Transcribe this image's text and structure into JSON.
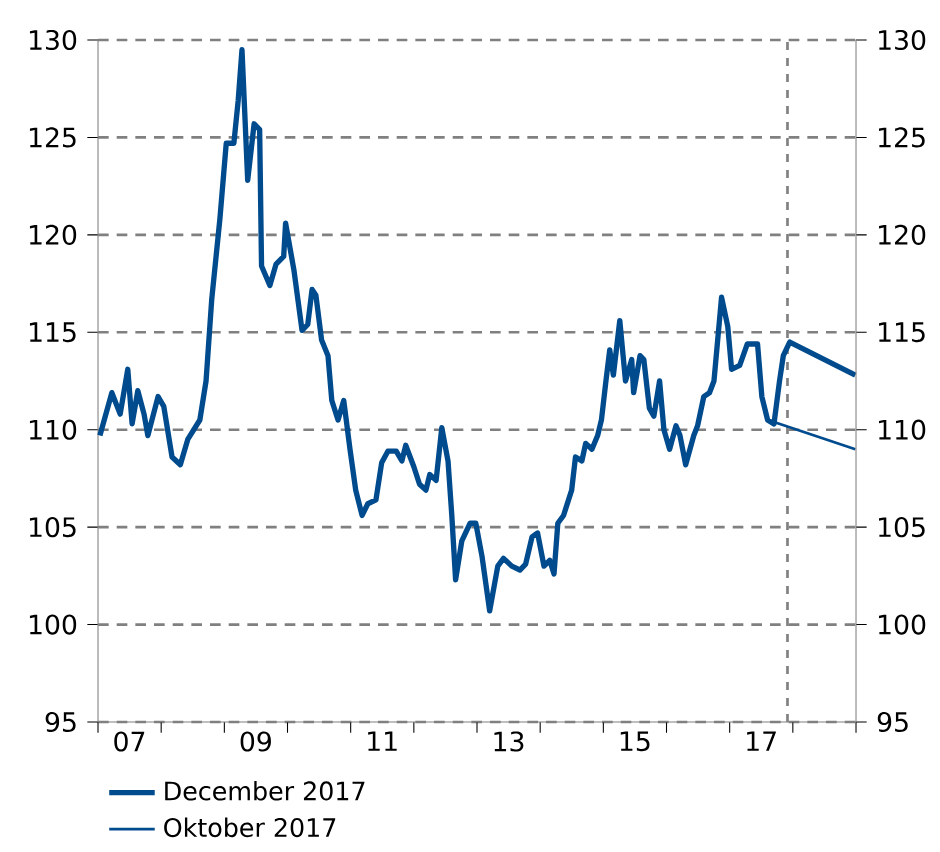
{
  "chart_data": {
    "type": "line",
    "xlim": [
      "2007-01-01",
      "2019-01-01"
    ],
    "xticks": [
      {
        "value": "2007-01-01",
        "label": null
      },
      {
        "value": "2007-07-02",
        "label": "07"
      },
      {
        "value": "2008-01-01",
        "label": null
      },
      {
        "value": "2009-01-01",
        "label": null
      },
      {
        "value": "2009-07-02",
        "label": "09"
      },
      {
        "value": "2010-01-01",
        "label": null
      },
      {
        "value": "2011-01-01",
        "label": null
      },
      {
        "value": "2011-07-02",
        "label": "11"
      },
      {
        "value": "2012-01-01",
        "label": null
      },
      {
        "value": "2013-01-01",
        "label": null
      },
      {
        "value": "2013-07-02",
        "label": "13"
      },
      {
        "value": "2014-01-01",
        "label": null
      },
      {
        "value": "2015-01-01",
        "label": null
      },
      {
        "value": "2015-07-02",
        "label": "15"
      },
      {
        "value": "2016-01-01",
        "label": null
      },
      {
        "value": "2017-01-01",
        "label": null
      },
      {
        "value": "2017-07-02",
        "label": "17"
      },
      {
        "value": "2018-01-01",
        "label": null
      },
      {
        "value": "2019-01-01",
        "label": null
      }
    ],
    "ylim": [
      95,
      130
    ],
    "yticks": [
      95,
      100,
      105,
      110,
      115,
      120,
      125,
      130
    ],
    "y2lim": [
      95,
      130
    ],
    "y2ticks": [
      95,
      100,
      105,
      110,
      115,
      120,
      125,
      130
    ],
    "grid": "y",
    "legend": "bottom",
    "marker": "none",
    "line_style": "solid",
    "ref_lines": [
      {
        "axis": "x",
        "value": "2017-12-01",
        "color": "#808080",
        "line_style": "dashed"
      }
    ],
    "series": [
      {
        "name": "December 2017",
        "color": "#004b8d",
        "x": [
          "2007-01-12",
          "2007-03-22",
          "2007-05-09",
          "2007-06-22",
          "2007-07-17",
          "2007-08-19",
          "2007-09-24",
          "2007-10-16",
          "2007-12-14",
          "2008-01-16",
          "2008-03-04",
          "2008-04-21",
          "2008-06-03",
          "2008-08-12",
          "2008-09-17",
          "2008-10-20",
          "2008-12-06",
          "2009-01-12",
          "2009-02-25",
          "2009-03-22",
          "2009-04-13",
          "2009-05-16",
          "2009-06-22",
          "2009-07-24",
          "2009-08-04",
          "2009-09-21",
          "2009-10-27",
          "2009-12-10",
          "2009-12-21",
          "2010-02-07",
          "2010-03-26",
          "2010-04-28",
          "2010-05-23",
          "2010-06-14",
          "2010-07-17",
          "2010-08-23",
          "2010-09-14",
          "2010-10-20",
          "2010-11-22",
          "2010-12-28",
          "2011-01-30",
          "2011-03-08",
          "2011-04-10",
          "2011-05-27",
          "2011-06-29",
          "2011-08-04",
          "2011-09-21",
          "2011-10-24",
          "2011-11-15",
          "2012-01-01",
          "2012-02-03",
          "2012-03-11",
          "2012-04-02",
          "2012-05-09",
          "2012-06-11",
          "2012-07-17",
          "2012-08-08",
          "2012-08-30",
          "2012-10-05",
          "2012-11-22",
          "2012-12-25",
          "2013-01-30",
          "2013-03-15",
          "2013-05-01",
          "2013-06-03",
          "2013-07-21",
          "2013-09-06",
          "2013-10-09",
          "2013-11-15",
          "2013-12-17",
          "2014-01-23",
          "2014-02-25",
          "2014-03-22",
          "2014-04-13",
          "2014-05-16",
          "2014-07-02",
          "2014-07-24",
          "2014-08-30",
          "2014-09-21",
          "2014-10-27",
          "2014-11-29",
          "2014-12-21",
          "2015-01-16",
          "2015-02-07",
          "2015-02-28",
          "2015-04-06",
          "2015-05-09",
          "2015-06-14",
          "2015-06-25",
          "2015-08-01",
          "2015-08-23",
          "2015-09-24",
          "2015-10-20",
          "2015-11-22",
          "2015-12-17",
          "2016-01-19",
          "2016-02-25",
          "2016-03-19",
          "2016-04-21",
          "2016-06-07",
          "2016-06-29",
          "2016-08-04",
          "2016-09-06",
          "2016-10-02",
          "2016-11-15",
          "2016-12-21",
          "2017-01-12",
          "2017-02-28",
          "2017-04-13",
          "2017-06-11",
          "2017-07-06",
          "2017-08-08",
          "2017-09-14",
          "2017-10-16",
          "2017-11-07",
          "2017-12-14",
          "2018-12-28"
        ],
        "values": [
          109.7,
          111.9,
          110.8,
          113.1,
          110.3,
          112.0,
          110.8,
          109.7,
          111.7,
          111.2,
          108.6,
          108.2,
          109.5,
          110.5,
          112.5,
          116.7,
          120.8,
          124.7,
          124.7,
          126.9,
          129.5,
          122.8,
          125.7,
          125.4,
          118.4,
          117.4,
          118.5,
          118.9,
          120.6,
          118.2,
          115.1,
          115.4,
          117.2,
          116.9,
          114.6,
          113.8,
          111.5,
          110.5,
          111.5,
          109.0,
          106.9,
          105.6,
          106.2,
          106.4,
          108.3,
          108.9,
          108.9,
          108.4,
          109.2,
          108.1,
          107.2,
          106.9,
          107.7,
          107.4,
          110.1,
          108.4,
          105.6,
          102.3,
          104.3,
          105.2,
          105.2,
          103.5,
          100.7,
          103.0,
          103.4,
          103.0,
          102.8,
          103.1,
          104.5,
          104.7,
          103.0,
          103.3,
          102.6,
          105.2,
          105.6,
          106.9,
          108.6,
          108.4,
          109.3,
          109.0,
          109.7,
          110.5,
          112.5,
          114.1,
          112.8,
          115.6,
          112.5,
          113.6,
          111.9,
          113.8,
          113.6,
          111.1,
          110.7,
          112.5,
          110.0,
          109.0,
          110.2,
          109.7,
          108.2,
          109.7,
          110.2,
          111.7,
          111.9,
          112.5,
          116.8,
          115.3,
          113.1,
          113.3,
          114.4,
          114.4,
          111.7,
          110.5,
          110.3,
          112.5,
          113.8,
          114.5,
          112.8
        ]
      },
      {
        "name": "Oktober 2017",
        "color": "#004b8d",
        "x": [
          "2017-09-14",
          "2018-12-28"
        ],
        "values": [
          110.4,
          109.0
        ]
      }
    ]
  }
}
